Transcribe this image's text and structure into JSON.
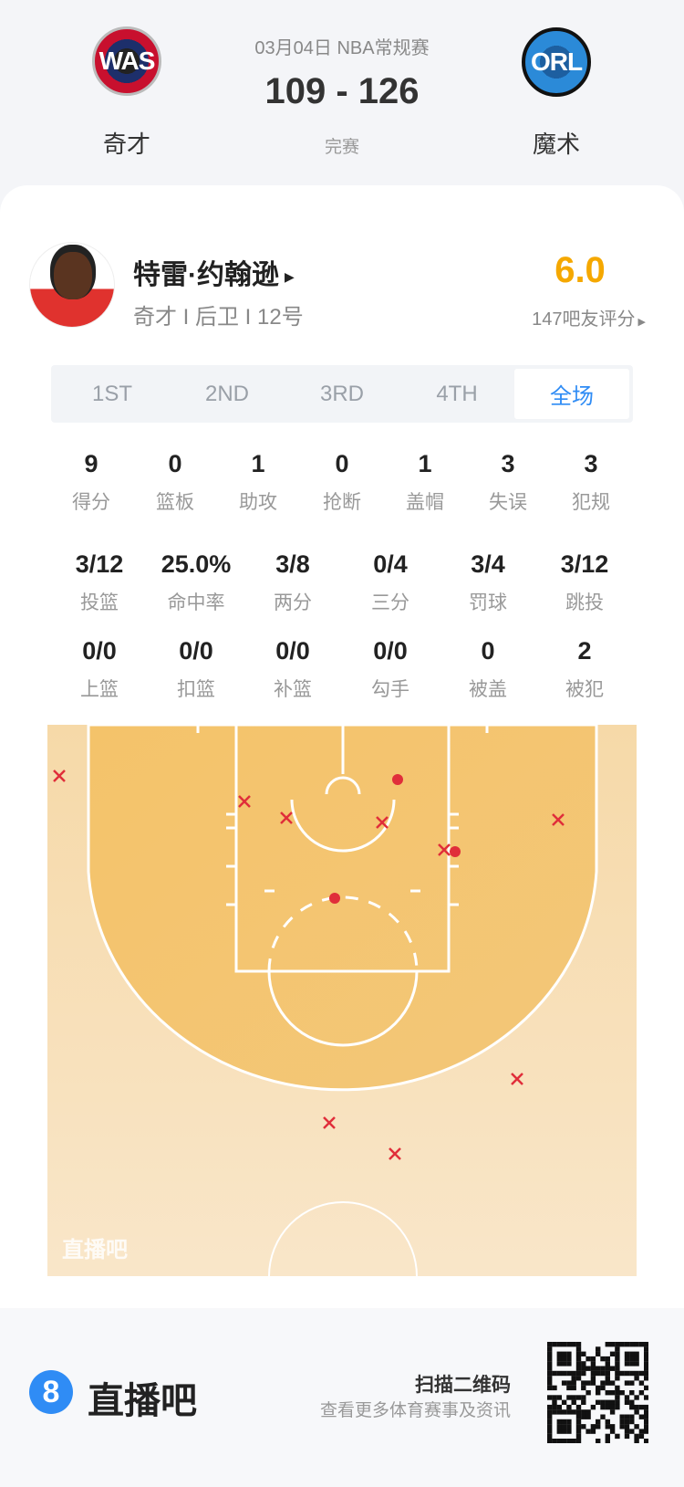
{
  "header": {
    "date_league": "03月04日 NBA常规赛",
    "score": "109 - 126",
    "status": "完赛",
    "home": {
      "abbr": "WAS",
      "name": "奇才",
      "color": "#c8102e"
    },
    "away": {
      "abbr": "ORL",
      "name": "魔术",
      "color": "#2b7fcf"
    }
  },
  "player": {
    "name": "特雷·约翰逊",
    "meta": "奇才 I 后卫 I 12号",
    "rating": "6.0",
    "rating_label": "147吧友评分",
    "rating_color": "#f5a800"
  },
  "tabs": [
    {
      "label": "1ST"
    },
    {
      "label": "2ND"
    },
    {
      "label": "3RD"
    },
    {
      "label": "4TH"
    },
    {
      "label": "全场",
      "active": true
    }
  ],
  "stats_row1": [
    {
      "value": "9",
      "label": "得分"
    },
    {
      "value": "0",
      "label": "篮板"
    },
    {
      "value": "1",
      "label": "助攻"
    },
    {
      "value": "0",
      "label": "抢断"
    },
    {
      "value": "1",
      "label": "盖帽"
    },
    {
      "value": "3",
      "label": "失误"
    },
    {
      "value": "3",
      "label": "犯规"
    }
  ],
  "stats_row2": [
    {
      "value": "3/12",
      "label": "投篮"
    },
    {
      "value": "25.0%",
      "label": "命中率"
    },
    {
      "value": "3/8",
      "label": "两分"
    },
    {
      "value": "0/4",
      "label": "三分"
    },
    {
      "value": "3/4",
      "label": "罚球"
    },
    {
      "value": "3/12",
      "label": "跳投"
    }
  ],
  "stats_row3": [
    {
      "value": "0/0",
      "label": "上篮"
    },
    {
      "value": "0/0",
      "label": "扣篮"
    },
    {
      "value": "0/0",
      "label": "补篮"
    },
    {
      "value": "0/0",
      "label": "勾手"
    },
    {
      "value": "0",
      "label": "被盖"
    },
    {
      "value": "2",
      "label": "被犯"
    }
  ],
  "shot_chart": {
    "made": 3,
    "missed": 9,
    "made_color": "#e02e3a",
    "watermark": "直播吧"
  },
  "footer": {
    "brand": "直播吧",
    "logo_glyph": "8",
    "scan_title": "扫描二维码",
    "scan_sub": "查看更多体育赛事及资讯",
    "accent": "#2f8cf5"
  }
}
